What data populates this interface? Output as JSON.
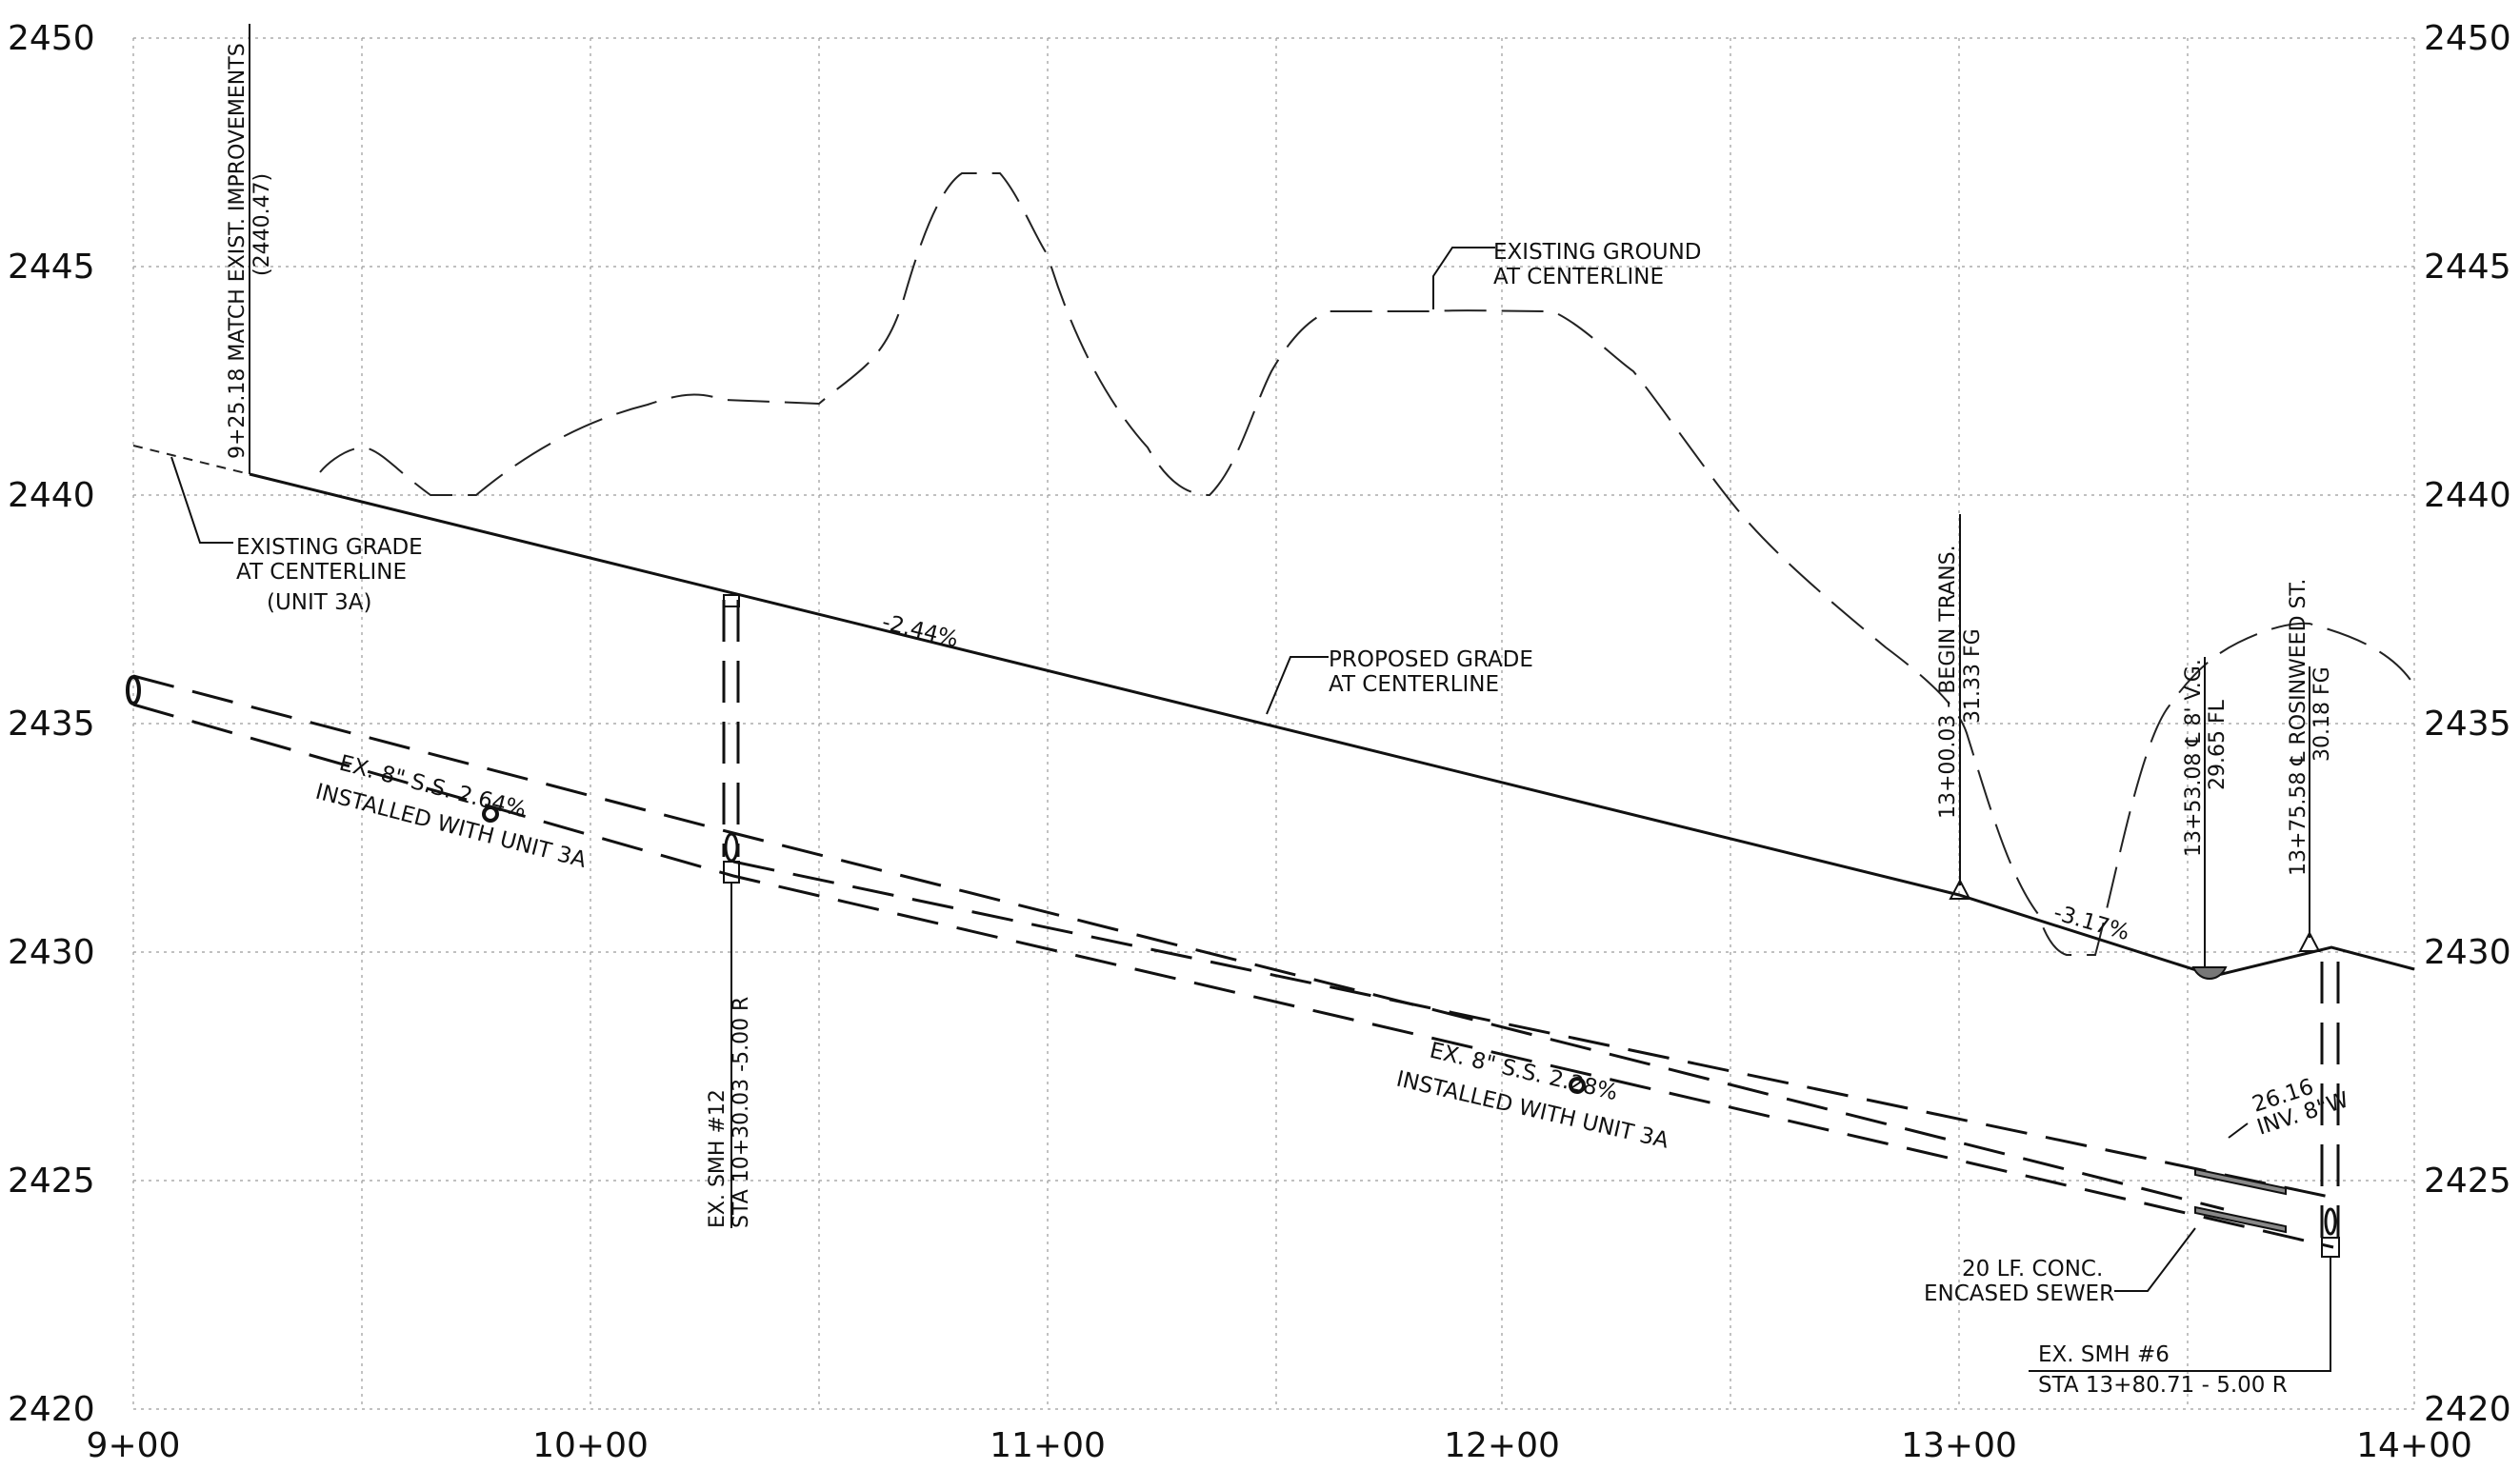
{
  "axes": {
    "x_ticks": [
      "9+00",
      "10+00",
      "11+00",
      "12+00",
      "13+00",
      "14+00"
    ],
    "y_ticks": [
      "2420",
      "2425",
      "2430",
      "2435",
      "2440",
      "2445",
      "2450"
    ]
  },
  "labels": {
    "existing_ground": [
      "EXISTING GROUND",
      "AT CENTERLINE"
    ],
    "existing_grade": [
      "EXISTING GRADE",
      "AT CENTERLINE",
      "(UNIT 3A)"
    ],
    "proposed_grade": [
      "PROPOSED GRADE",
      "AT CENTERLINE"
    ],
    "slope_main": "-2.44%",
    "slope_end": "-3.17%",
    "sewer_upper": [
      "EX. 8\" S.S.  2.64%",
      "INSTALLED WITH UNIT 3A"
    ],
    "sewer_lower": [
      "EX. 8\" S.S.  2.28%",
      "INSTALLED WITH UNIT 3A"
    ],
    "match_station": [
      "9+25.18 MATCH EXIST. IMPROVEMENTS",
      "(2440.47)"
    ],
    "smh12": [
      "EX. SMH #12",
      "STA 10+30.03 -5.00 R"
    ],
    "begin_trans": [
      "13+00.03 - BEGIN TRANS.",
      "31.33 FG"
    ],
    "vg": [
      "13+53.08 ℄ 8' V.G.",
      "29.65 FL"
    ],
    "rosinweed": [
      "13+75.58 ℄ ROSINWEED ST.",
      "30.18 FG"
    ],
    "inv": [
      "26.16",
      "INV. 8\"W"
    ],
    "encased": [
      "20 LF. CONC.",
      "ENCASED SEWER"
    ],
    "smh6": [
      "EX. SMH #6",
      "STA 13+80.71 - 5.00 R"
    ]
  }
}
